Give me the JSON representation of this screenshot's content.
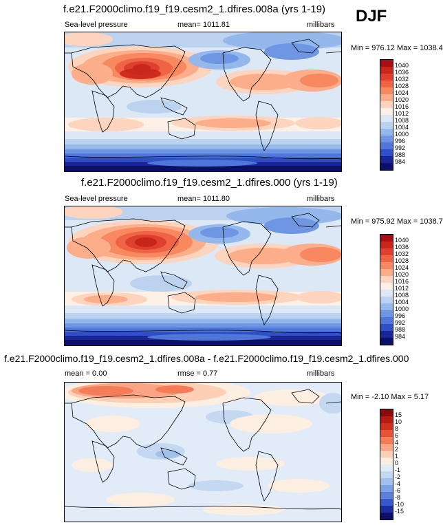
{
  "season": "DJF",
  "panels": [
    {
      "title": "f.e21.F2000climo.f19_f19.cesm2_1.dfires.008a (yrs 1-19)",
      "left_label": "Sea-level pressure",
      "center_label": "mean= 1011.81",
      "units": "millibars",
      "minmax": "Min = 976.12 Max = 1038.42"
    },
    {
      "title": "f.e21.F2000climo.f19_f19.cesm2_1.dfires.000 (yrs 1-19)",
      "left_label": "Sea-level pressure",
      "center_label": "mean= 1011.80",
      "units": "millibars",
      "minmax": "Min = 975.92 Max = 1038.73"
    },
    {
      "title": "f.e21.F2000climo.f19_f19.cesm2_1.dfires.008a - f.e21.F2000climo.f19_f19.cesm2_1.dfires.000",
      "left_label": "mean =   0.00",
      "center_label": "rmse =   0.77",
      "units": "millibars",
      "minmax": "Min =  -2.10 Max =  5.17"
    }
  ],
  "chart_data": [
    {
      "type": "heatmap",
      "variable": "Sea-level pressure",
      "units": "millibars",
      "mean": 1011.81,
      "min": 976.12,
      "max": 1038.42,
      "colorbar_levels": [
        "1040",
        "1036",
        "1032",
        "1028",
        "1024",
        "1020",
        "1016",
        "1012",
        "1008",
        "1004",
        "1000",
        "996",
        "992",
        "988",
        "984"
      ],
      "colorbar_colors": [
        "#a50f15",
        "#c9261b",
        "#de3f2e",
        "#ee6445",
        "#f7885f",
        "#fcad8a",
        "#fdd4be",
        "#fdf0e6",
        "#dde8f7",
        "#bcd3f0",
        "#95b8ec",
        "#6f96e3",
        "#4f76d8",
        "#2f4fc6",
        "#1a2598",
        "#0c1167"
      ],
      "regimes": {
        "siberian_high": 1038,
        "pacific_subtropical_high": 1022,
        "atlantic_subtropical_high": 1024,
        "aleutian_low": 1004,
        "icelandic_low": 1000,
        "equatorial_trough": 1008,
        "southern_subtropical_ridge": 1018,
        "southern_ocean_trough": 984
      }
    },
    {
      "type": "heatmap",
      "variable": "Sea-level pressure",
      "units": "millibars",
      "mean": 1011.8,
      "min": 975.92,
      "max": 1038.73,
      "colorbar_levels": [
        "1040",
        "1036",
        "1032",
        "1028",
        "1024",
        "1020",
        "1016",
        "1012",
        "1008",
        "1004",
        "1000",
        "996",
        "992",
        "988",
        "984"
      ],
      "colorbar_colors": [
        "#a50f15",
        "#c9261b",
        "#de3f2e",
        "#ee6445",
        "#f7885f",
        "#fcad8a",
        "#fdd4be",
        "#fdf0e6",
        "#dde8f7",
        "#bcd3f0",
        "#95b8ec",
        "#6f96e3",
        "#4f76d8",
        "#2f4fc6",
        "#1a2598",
        "#0c1167"
      ],
      "regimes": {
        "siberian_high": 1038,
        "pacific_subtropical_high": 1022,
        "atlantic_subtropical_high": 1026,
        "aleutian_low": 1004,
        "icelandic_low": 1000,
        "equatorial_trough": 1008,
        "southern_subtropical_ridge": 1020,
        "southern_ocean_trough": 984
      }
    },
    {
      "type": "heatmap",
      "variable": "Sea-level pressure difference",
      "units": "millibars",
      "mean": 0.0,
      "rmse": 0.77,
      "min": -2.1,
      "max": 5.17,
      "colorbar_levels": [
        "15",
        "10",
        "8",
        "6",
        "4",
        "2",
        "1",
        "0",
        "-1",
        "-2",
        "-4",
        "-6",
        "-8",
        "-10",
        "-15"
      ],
      "colorbar_colors": [
        "#8b0a0a",
        "#b51a15",
        "#d1301f",
        "#e65235",
        "#f47c58",
        "#fba483",
        "#fdcfb4",
        "#fdeee2",
        "#e1ecf8",
        "#c5d8f1",
        "#a2c0ec",
        "#7da2e4",
        "#5a80da",
        "#3a58c9",
        "#1d2ea2",
        "#0c1167"
      ],
      "regimes": {
        "eurasia_arctic": 1.5,
        "north_atlantic": 0.5,
        "north_pacific": -0.5,
        "maritime_continent": -0.8,
        "tropics": 0.2,
        "southern_ocean": 0.3
      }
    }
  ]
}
